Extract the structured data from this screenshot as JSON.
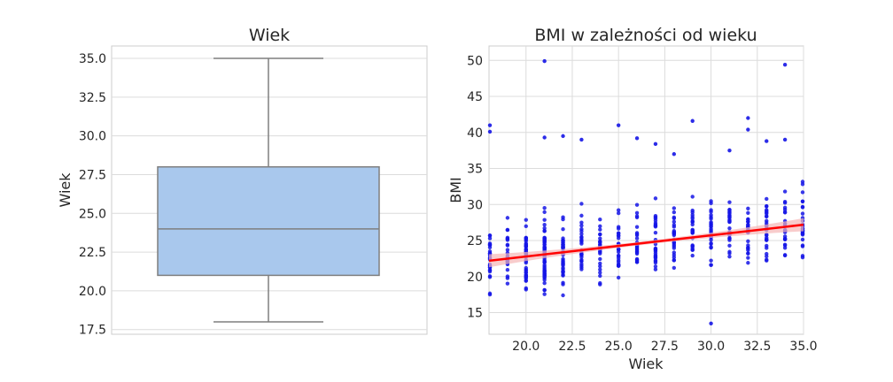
{
  "chart_data": [
    {
      "type": "box",
      "title": "Wiek",
      "xlabel": "",
      "ylabel": "Wiek",
      "ylim": [
        17.2,
        35.8
      ],
      "yticks": [
        17.5,
        20.0,
        22.5,
        25.0,
        27.5,
        30.0,
        32.5,
        35.0
      ],
      "box": {
        "whisker_low": 18,
        "q1": 21,
        "median": 24,
        "q3": 28,
        "whisker_high": 35
      },
      "colors": {
        "box_fill": "#a9c8ed",
        "box_edge": "#7f7f7f"
      },
      "grid": true
    },
    {
      "type": "scatter",
      "title": "BMI w zależności od wieku",
      "xlabel": "Wiek",
      "ylabel": "BMI",
      "xlim": [
        18,
        35
      ],
      "ylim": [
        12,
        52
      ],
      "xticks": [
        20.0,
        22.5,
        25.0,
        27.5,
        30.0,
        32.5,
        35.0
      ],
      "yticks": [
        15,
        20,
        25,
        30,
        35,
        40,
        45,
        50
      ],
      "ages": [
        18,
        19,
        20,
        21,
        22,
        23,
        24,
        25,
        26,
        27,
        28,
        29,
        30,
        31,
        32,
        33,
        34,
        35
      ],
      "outliers": [
        {
          "x": 18,
          "y": 41.0
        },
        {
          "x": 18,
          "y": 40.1
        },
        {
          "x": 21,
          "y": 49.9
        },
        {
          "x": 22,
          "y": 39.5
        },
        {
          "x": 21,
          "y": 39.3
        },
        {
          "x": 25,
          "y": 41.0
        },
        {
          "x": 29,
          "y": 41.6
        },
        {
          "x": 32,
          "y": 42.0
        },
        {
          "x": 34,
          "y": 49.4
        },
        {
          "x": 30,
          "y": 13.5
        },
        {
          "x": 23,
          "y": 39.0
        },
        {
          "x": 26,
          "y": 39.2
        },
        {
          "x": 27,
          "y": 38.4
        },
        {
          "x": 33,
          "y": 38.8
        },
        {
          "x": 34,
          "y": 39.0
        },
        {
          "x": 28,
          "y": 37.0
        },
        {
          "x": 31,
          "y": 37.5
        },
        {
          "x": 32,
          "y": 40.4
        }
      ],
      "regression": {
        "x0": 18,
        "y0": 22.2,
        "x1": 35,
        "y1": 27.2,
        "ci_half_width_ends": 0.9
      },
      "colors": {
        "points": "#1515e6",
        "line": "#ff0000",
        "band": "#f5b6b6"
      },
      "grid": true
    }
  ]
}
